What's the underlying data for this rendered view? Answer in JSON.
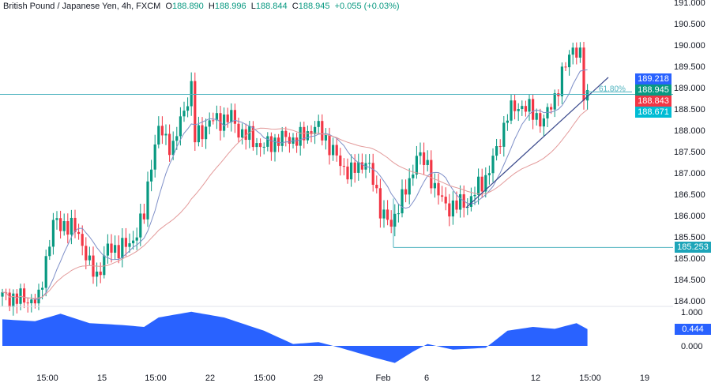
{
  "header": {
    "symbol": "British Pound / Japanese Yen, 4h, FXCM",
    "o_label": "O",
    "o": "188.890",
    "h_label": "H",
    "h": "188.996",
    "l_label": "L",
    "l": "188.844",
    "c_label": "C",
    "c": "188.945",
    "change": "+0.055 (+0.03%)"
  },
  "chart_data": {
    "type": "candlestick",
    "ylim": [
      183.8,
      191.1
    ],
    "yticks": [
      "191.000",
      "190.500",
      "190.000",
      "189.500",
      "189.000",
      "188.500",
      "188.000",
      "187.500",
      "187.000",
      "186.500",
      "186.000",
      "185.500",
      "185.000",
      "184.500",
      "184.000"
    ],
    "xticks": [
      "15:00",
      "15",
      "15:00",
      "22",
      "15:00",
      "29",
      "Feb",
      "6",
      "12",
      "15:00",
      "19"
    ],
    "price_path": [
      [
        0,
        184.1
      ],
      [
        10,
        184.0
      ],
      [
        12,
        185.0
      ],
      [
        14,
        185.8
      ],
      [
        17,
        185.8
      ],
      [
        21,
        185.6
      ],
      [
        24,
        184.8
      ],
      [
        26,
        184.6
      ],
      [
        29,
        185.2
      ],
      [
        35,
        185.3
      ],
      [
        39,
        186.0
      ],
      [
        41,
        187.3
      ],
      [
        43,
        188.0
      ],
      [
        47,
        187.6
      ],
      [
        50,
        188.5
      ],
      [
        52,
        189.0
      ],
      [
        53,
        187.8
      ],
      [
        57,
        188.2
      ],
      [
        63,
        188.3
      ],
      [
        65,
        188.0
      ],
      [
        72,
        187.6
      ],
      [
        76,
        187.8
      ],
      [
        82,
        187.8
      ],
      [
        86,
        188.1
      ],
      [
        89,
        187.8
      ],
      [
        93,
        187.2
      ],
      [
        96,
        187.0
      ],
      [
        100,
        187.3
      ],
      [
        102,
        186.8
      ],
      [
        104,
        186.2
      ],
      [
        107,
        185.7
      ],
      [
        109,
        186.3
      ],
      [
        112,
        186.7
      ],
      [
        114,
        187.5
      ],
      [
        117,
        187.1
      ],
      [
        120,
        186.5
      ],
      [
        122,
        186.2
      ],
      [
        128,
        186.3
      ],
      [
        133,
        186.9
      ],
      [
        136,
        187.5
      ],
      [
        139,
        188.4
      ],
      [
        143,
        188.6
      ],
      [
        149,
        188.2
      ],
      [
        152,
        188.8
      ],
      [
        155,
        189.5
      ],
      [
        157,
        190.0
      ],
      [
        159,
        189.7
      ],
      [
        160,
        188.8
      ],
      [
        161,
        188.945
      ]
    ],
    "ma_periods": [
      9,
      30
    ],
    "ma_colors": [
      "#7e8fc8",
      "#e39a9a"
    ],
    "levels": [
      {
        "price": 188.843,
        "label": "188.843",
        "color": "#f23645"
      },
      {
        "price": 185.253,
        "label": "185.253",
        "color": "#1ea5b9"
      }
    ],
    "fib": {
      "label": "61.80%",
      "price": 188.9
    },
    "price_labels": [
      {
        "label": "189.218",
        "color": "#2962ff",
        "price": 189.218
      },
      {
        "label": "188.945",
        "color": "#089981",
        "price": 188.945
      },
      {
        "label": "188.843",
        "color": "#f23645",
        "price": 188.843
      },
      {
        "label": "188.671",
        "color": "#00bcd4",
        "price": 188.671
      }
    ],
    "oscillator": {
      "value": "0.444",
      "ticks": [
        "1.000",
        "0.000"
      ],
      "color": "#2962ff",
      "path": [
        [
          0,
          0.7
        ],
        [
          9,
          0.65
        ],
        [
          16,
          0.85
        ],
        [
          24,
          0.6
        ],
        [
          33,
          0.55
        ],
        [
          39,
          0.5
        ],
        [
          43,
          0.75
        ],
        [
          52,
          0.9
        ],
        [
          61,
          0.75
        ],
        [
          72,
          0.4
        ],
        [
          80,
          0.05
        ],
        [
          87,
          0.1
        ],
        [
          93,
          -0.05
        ],
        [
          102,
          -0.3
        ],
        [
          108,
          -0.45
        ],
        [
          113,
          -0.15
        ],
        [
          117,
          0.05
        ],
        [
          124,
          -0.1
        ],
        [
          133,
          -0.05
        ],
        [
          139,
          0.4
        ],
        [
          146,
          0.5
        ],
        [
          152,
          0.45
        ],
        [
          158,
          0.6
        ],
        [
          161,
          0.444
        ]
      ]
    },
    "up_color": "#089981",
    "down_color": "#f23645"
  }
}
